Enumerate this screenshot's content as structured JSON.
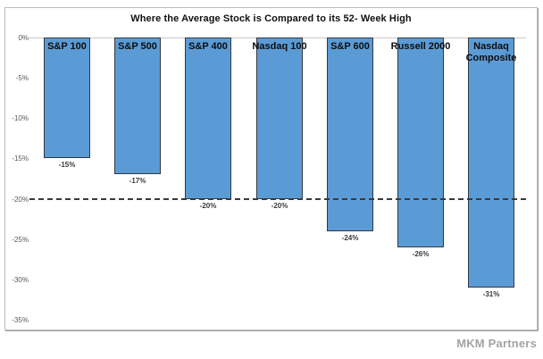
{
  "watermark": {
    "label": "MKM Partners"
  },
  "chart_data": {
    "type": "bar",
    "title": "Where the Average Stock is Compared to its 52- Week High",
    "categories": [
      "S&P 100",
      "S&P 500",
      "S&P 400",
      "Nasdaq 100",
      "S&P 600",
      "Russell 2000",
      "Nasdaq Composite"
    ],
    "values": [
      -15,
      -17,
      -20,
      -20,
      -24,
      -26,
      -31
    ],
    "value_labels": [
      "-15%",
      "-17%",
      "-20%",
      "-20%",
      "-24%",
      "-26%",
      "-31%"
    ],
    "xlabel": "",
    "ylabel": "",
    "ylim": [
      0,
      -35
    ],
    "y_ticks": [
      {
        "value": 0,
        "label": "0%"
      },
      {
        "value": -5,
        "label": "-5%"
      },
      {
        "value": -10,
        "label": "-10%"
      },
      {
        "value": -15,
        "label": "-15%"
      },
      {
        "value": -20,
        "label": "-20%"
      },
      {
        "value": -25,
        "label": "-25%"
      },
      {
        "value": -30,
        "label": "-30%"
      },
      {
        "value": -35,
        "label": "-35%"
      }
    ],
    "reference_line": {
      "value": -20,
      "style": "dashed",
      "color": "#3a3a3a"
    },
    "bar_color": "#5B9BD5",
    "bar_border_color": "#33383f",
    "grid": "off",
    "legend": "none"
  }
}
